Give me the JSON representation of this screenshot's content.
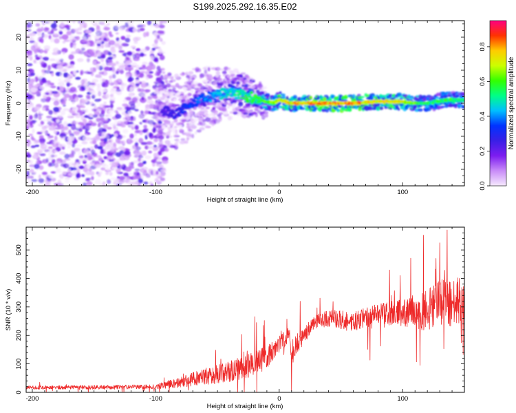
{
  "title": "S199.2025.292.16.35.E02",
  "colors": {
    "snr_line": "#ee2a2a",
    "axis": "#000000",
    "cmap": [
      "#f6eafe",
      "#c98cf8",
      "#7d1df0",
      "#3a1fe6",
      "#0033ff",
      "#00bfff",
      "#00ff88",
      "#33ff00",
      "#ccff00",
      "#ffcc00",
      "#ff3300",
      "#ff0080"
    ]
  },
  "chart_data": [
    {
      "type": "heatmap",
      "name": "spectrogram",
      "title": "S199.2025.292.16.35.E02",
      "xlabel": "Height of straight line (km)",
      "ylabel": "Frequency (Hz)",
      "xlim": [
        -205,
        150
      ],
      "ylim": [
        -25,
        25
      ],
      "xticks": [
        -200,
        -100,
        0,
        100
      ],
      "xtick_labels": [
        "-200",
        "-100",
        "0",
        "100"
      ],
      "yticks": [
        -20,
        -10,
        0,
        10,
        20
      ],
      "ytick_labels": [
        "-20",
        "-10",
        "0",
        "10",
        "20"
      ],
      "colorbar": {
        "label": "Normalized spectral amplitude",
        "range": [
          0,
          0.95
        ],
        "ticks": [
          0.0,
          0.2,
          0.4,
          0.6,
          0.8
        ],
        "tick_labels": [
          "0.0",
          "0.2",
          "0.4",
          "0.6",
          "0.8"
        ]
      },
      "noise_region_km": [
        -205,
        -100
      ],
      "ridge": {
        "x": [
          -95,
          -85,
          -75,
          -65,
          -55,
          -45,
          -35,
          -25,
          -15,
          -5,
          0,
          10,
          30,
          60,
          80,
          95,
          110,
          120,
          135,
          150
        ],
        "freq_hz": [
          -2,
          -3,
          -1,
          1,
          2,
          3,
          3,
          2,
          1,
          0,
          1,
          0,
          0,
          0,
          0.5,
          0.5,
          0,
          0,
          1,
          1
        ],
        "amplitude": [
          0.25,
          0.3,
          0.35,
          0.4,
          0.45,
          0.5,
          0.55,
          0.6,
          0.65,
          0.7,
          0.8,
          0.85,
          0.9,
          0.9,
          0.8,
          0.85,
          0.7,
          0.6,
          0.65,
          0.6
        ]
      }
    },
    {
      "type": "line",
      "name": "snr",
      "xlabel": "Height of straight line (km)",
      "ylabel": "SNR (10 * v/v)",
      "xlim": [
        -205,
        150
      ],
      "ylim": [
        0,
        580
      ],
      "xticks": [
        -200,
        -100,
        0,
        100
      ],
      "xtick_labels": [
        "-200",
        "-100",
        "0",
        "100"
      ],
      "yticks": [
        0,
        100,
        200,
        300,
        400,
        500
      ],
      "ytick_labels": [
        "0",
        "100",
        "200",
        "300",
        "400",
        "500"
      ],
      "trend": {
        "x": [
          -205,
          -130,
          -100,
          -80,
          -60,
          -40,
          -25,
          -15,
          -8,
          -3,
          0,
          5,
          8,
          10,
          13,
          17,
          22,
          25,
          28,
          35,
          45,
          55,
          65,
          80,
          95,
          105,
          115,
          125,
          135,
          145,
          150
        ],
        "y": [
          17,
          18,
          20,
          35,
          55,
          75,
          90,
          110,
          130,
          150,
          175,
          195,
          215,
          110,
          155,
          180,
          210,
          225,
          240,
          255,
          260,
          250,
          255,
          270,
          275,
          285,
          285,
          305,
          315,
          310,
          330
        ]
      },
      "spikes": [
        {
          "x": -13,
          "y": 235
        },
        {
          "x": -12,
          "y": 252
        },
        {
          "x": 10,
          "y": 6
        },
        {
          "x": 17,
          "y": 320
        },
        {
          "x": 130,
          "y": 525
        },
        {
          "x": 136,
          "y": 570
        },
        {
          "x": 114,
          "y": 95
        },
        {
          "x": 127,
          "y": 470
        },
        {
          "x": 146,
          "y": 400
        },
        {
          "x": 98,
          "y": 410
        }
      ],
      "noise_amplitude": {
        "x": [
          -205,
          -100,
          -60,
          -20,
          0,
          25,
          60,
          100,
          120,
          135,
          150
        ],
        "y": [
          6,
          8,
          30,
          45,
          35,
          25,
          35,
          50,
          75,
          90,
          70
        ]
      }
    }
  ]
}
